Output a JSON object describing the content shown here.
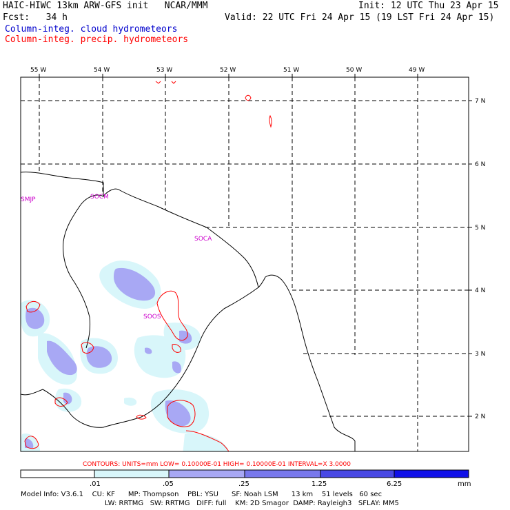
{
  "header": {
    "line1_left": "HAIC-HIWC 13km ARW-GFS init   NCAR/MMM",
    "line1_right": "Init: 12 UTC Thu 23 Apr 15",
    "line2_left": "Fcst:   34 h",
    "line2_right": "Valid: 22 UTC Fri 24 Apr 15 (19 LST Fri 24 Apr 15)",
    "legend_cloud": "Column-integ. cloud hydrometeors",
    "legend_precip": "Column-integ. precip. hydrometeors"
  },
  "colors": {
    "cloud": "#0000cc",
    "precip": "#ff0000",
    "stations": "#cc00cc",
    "fill_1": "#d8f6fa",
    "fill_2": "#a8a8f4",
    "fill_3": "#7878ec",
    "fill_4": "#4848e4",
    "fill_5": "#1010e8"
  },
  "axes": {
    "lon_labels": [
      "55 W",
      "54 W",
      "53 W",
      "52 W",
      "51 W",
      "50 W",
      "49 W"
    ],
    "lat_labels": [
      "7 N",
      "6 N",
      "5 N",
      "4 N",
      "3 N",
      "2 N"
    ]
  },
  "stations": [
    "SMJP",
    "SOCM",
    "SOCA",
    "SOOS"
  ],
  "contour_info": "CONTOURS:  UNITS=mm  LOW= 0.10000E-01  HIGH= 0.10000E-01  INTERVAL=X  3.0000",
  "colorbar": {
    "ticks": [
      ".01",
      ".05",
      ".25",
      "1.25",
      "6.25"
    ],
    "unit": "mm"
  },
  "footer": {
    "line1": "Model Info: V3.6.1    CU: KF      MP: Thompson    PBL: YSU      SF: Noah LSM      13 km    51 levels   60 sec",
    "line2": "LW: RRTMG   SW: RRTMG   DIFF: full    KM: 2D Smagor  DAMP: Rayleigh3   SFLAY: MM5"
  }
}
